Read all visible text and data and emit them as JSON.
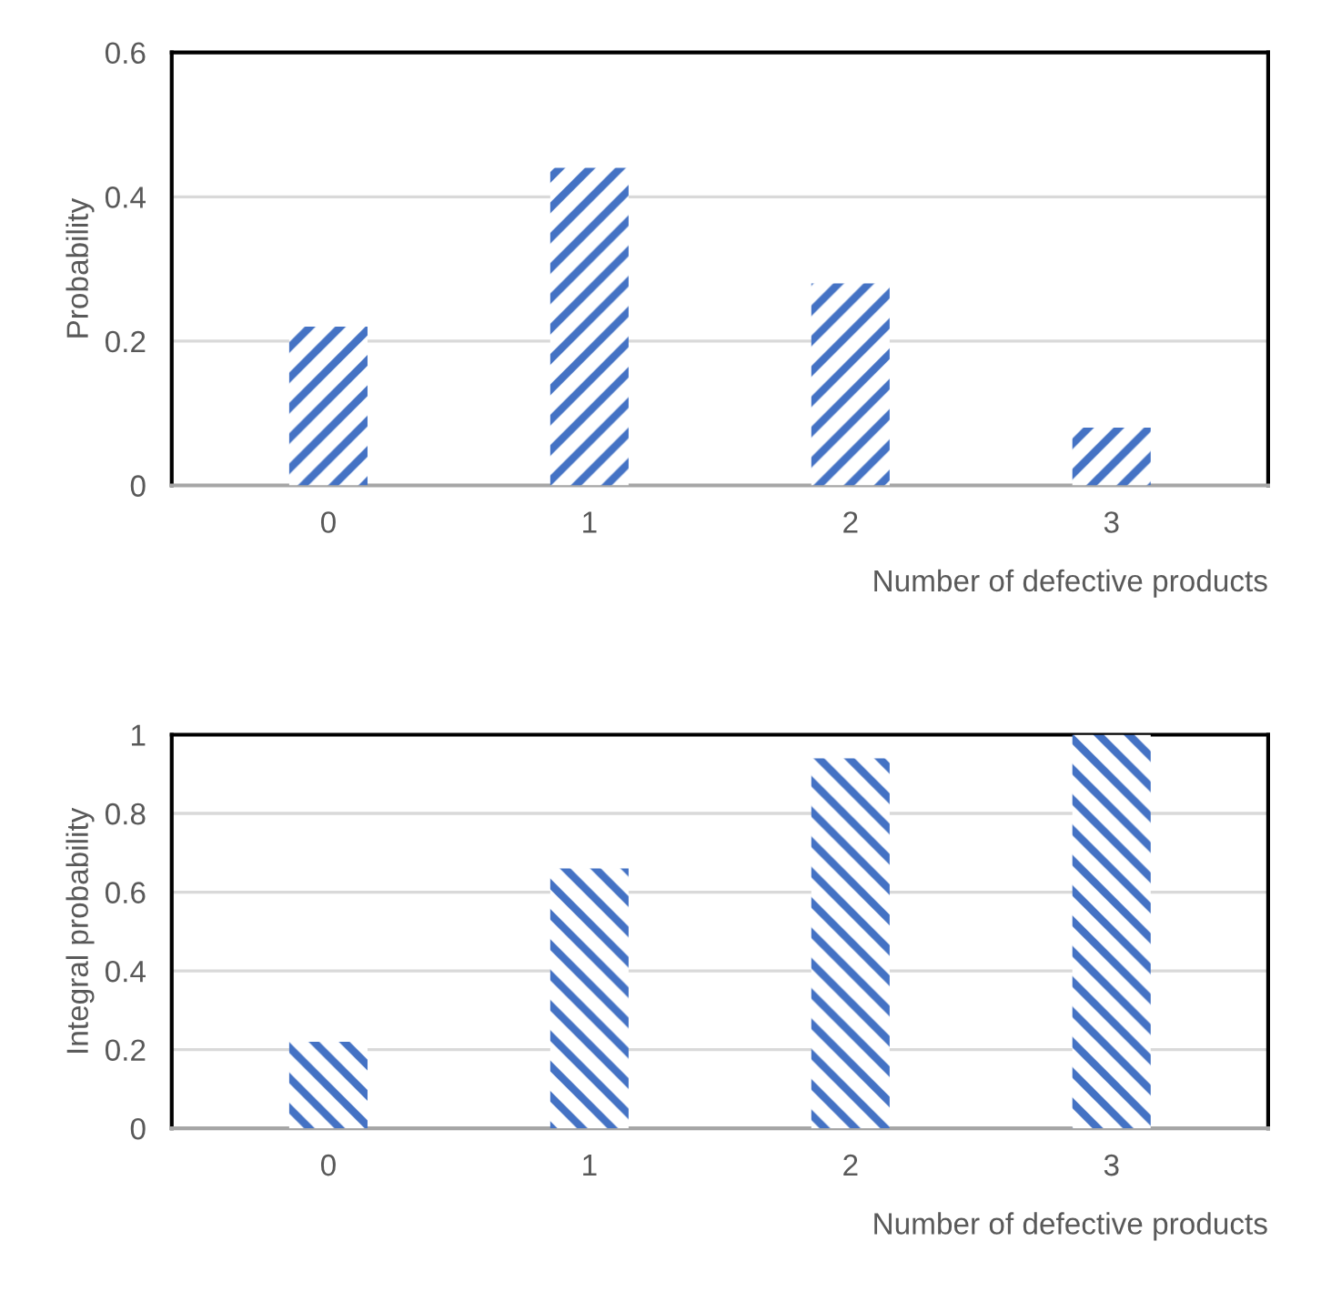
{
  "chart_data": [
    {
      "type": "bar",
      "ylabel": "Probability",
      "xlabel": "Number of defective products",
      "categories": [
        "0",
        "1",
        "2",
        "3"
      ],
      "values": [
        0.22,
        0.44,
        0.28,
        0.08
      ],
      "color": "#4472c4",
      "ylim": [
        0,
        0.6
      ],
      "yticks": [
        0,
        0.2,
        0.4,
        0.6
      ],
      "grid": "y"
    },
    {
      "type": "bar",
      "ylabel": "Integral probability",
      "xlabel": "Number of defective products",
      "categories": [
        "0",
        "1",
        "2",
        "3"
      ],
      "values": [
        0.22,
        0.66,
        0.94,
        1
      ],
      "color": "#4472c4",
      "ylim": [
        0,
        1
      ],
      "yticks": [
        0,
        0.2,
        0.4,
        0.6,
        0.8,
        1
      ],
      "grid": "y"
    }
  ]
}
